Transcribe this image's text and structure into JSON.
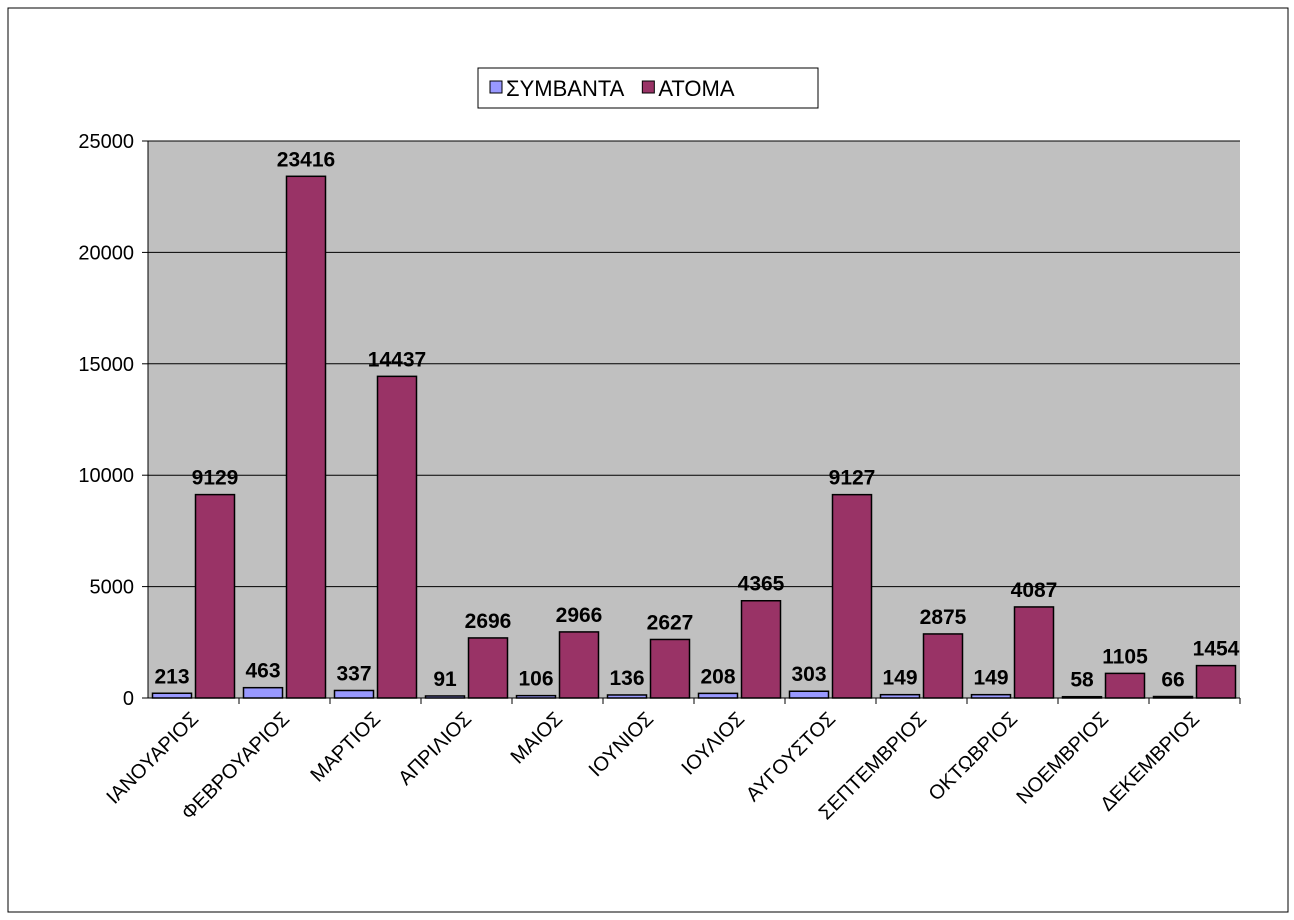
{
  "chart_data": {
    "type": "bar",
    "categories": [
      "ΙΑΝΟΥΑΡΙΟΣ",
      "ΦΕΒΡΟΥΑΡΙΟΣ",
      "ΜΑΡΤΙΟΣ",
      "ΑΠΡΙΛΙΟΣ",
      "ΜΑΙΟΣ",
      "ΙΟΥΝΙΟΣ",
      "ΙΟΥΛΙΟΣ",
      "ΑΥΓΟΥΣΤΟΣ",
      "ΣΕΠΤΕΜΒΡΙΟΣ",
      "ΟΚΤΩΒΡΙΟΣ",
      "ΝΟΕΜΒΡΙΟΣ",
      "ΔΕΚΕΜΒΡΙΟΣ"
    ],
    "series": [
      {
        "name": "ΣΥΜΒΑΝΤΑ",
        "color": "#9999ff",
        "values": [
          213,
          463,
          337,
          91,
          106,
          136,
          208,
          303,
          149,
          149,
          58,
          66
        ]
      },
      {
        "name": "ΑΤΟΜΑ",
        "color": "#993366",
        "values": [
          9129,
          23416,
          14437,
          2696,
          2966,
          2627,
          4365,
          9127,
          2875,
          4087,
          1105,
          1454
        ]
      }
    ],
    "ylim": [
      0,
      25000
    ],
    "yticks": [
      0,
      5000,
      10000,
      15000,
      20000,
      25000
    ],
    "grid": true,
    "legend": "top"
  }
}
